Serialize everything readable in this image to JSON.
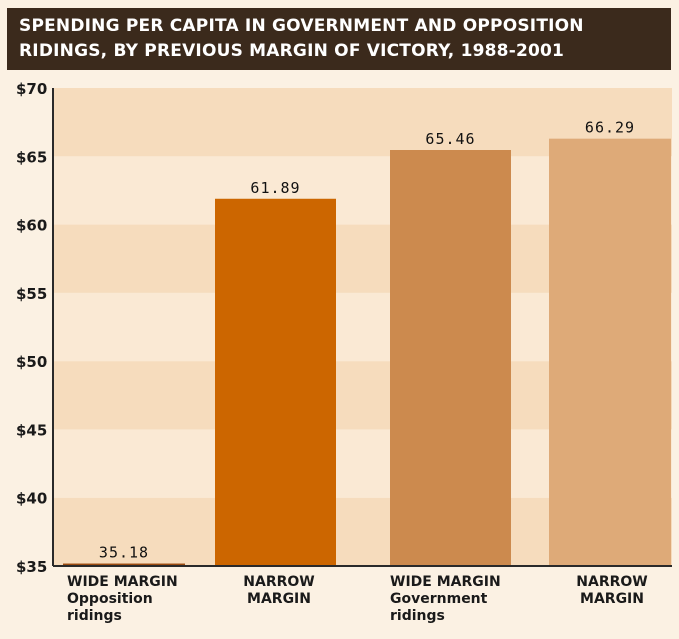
{
  "chart_data": {
    "type": "bar",
    "title_lines": [
      "SPENDING PER CAPITA IN GOVERNMENT AND OPPOSITION",
      "RIDINGS, BY PREVIOUS MARGIN OF VICTORY, 1988-2001"
    ],
    "categories": [
      {
        "lines": [
          "WIDE MARGIN",
          "Opposition",
          "ridings"
        ],
        "align": "start"
      },
      {
        "lines": [
          "NARROW",
          "MARGIN"
        ],
        "align": "middle"
      },
      {
        "lines": [
          "WIDE MARGIN",
          "Government",
          "ridings"
        ],
        "align": "start"
      },
      {
        "lines": [
          "NARROW",
          "MARGIN"
        ],
        "align": "middle"
      }
    ],
    "values": [
      35.18,
      61.89,
      65.46,
      66.29
    ],
    "value_labels": [
      "35.18",
      "61.89",
      "65.46",
      "66.29"
    ],
    "bar_colors": [
      "#9a4a10",
      "#cc6600",
      "#cc8a4e",
      "#deaa78"
    ],
    "yticks": [
      35,
      40,
      45,
      50,
      55,
      60,
      65,
      70
    ],
    "ytick_labels": [
      "$35",
      "$40",
      "$45",
      "$50",
      "$55",
      "$60",
      "$65",
      "$70"
    ],
    "ylim": [
      35,
      70
    ],
    "grid": "alternating horizontal bands",
    "band_colors": [
      "#f6dcbd",
      "#fae9d4"
    ],
    "xlabel": "",
    "ylabel": ""
  }
}
